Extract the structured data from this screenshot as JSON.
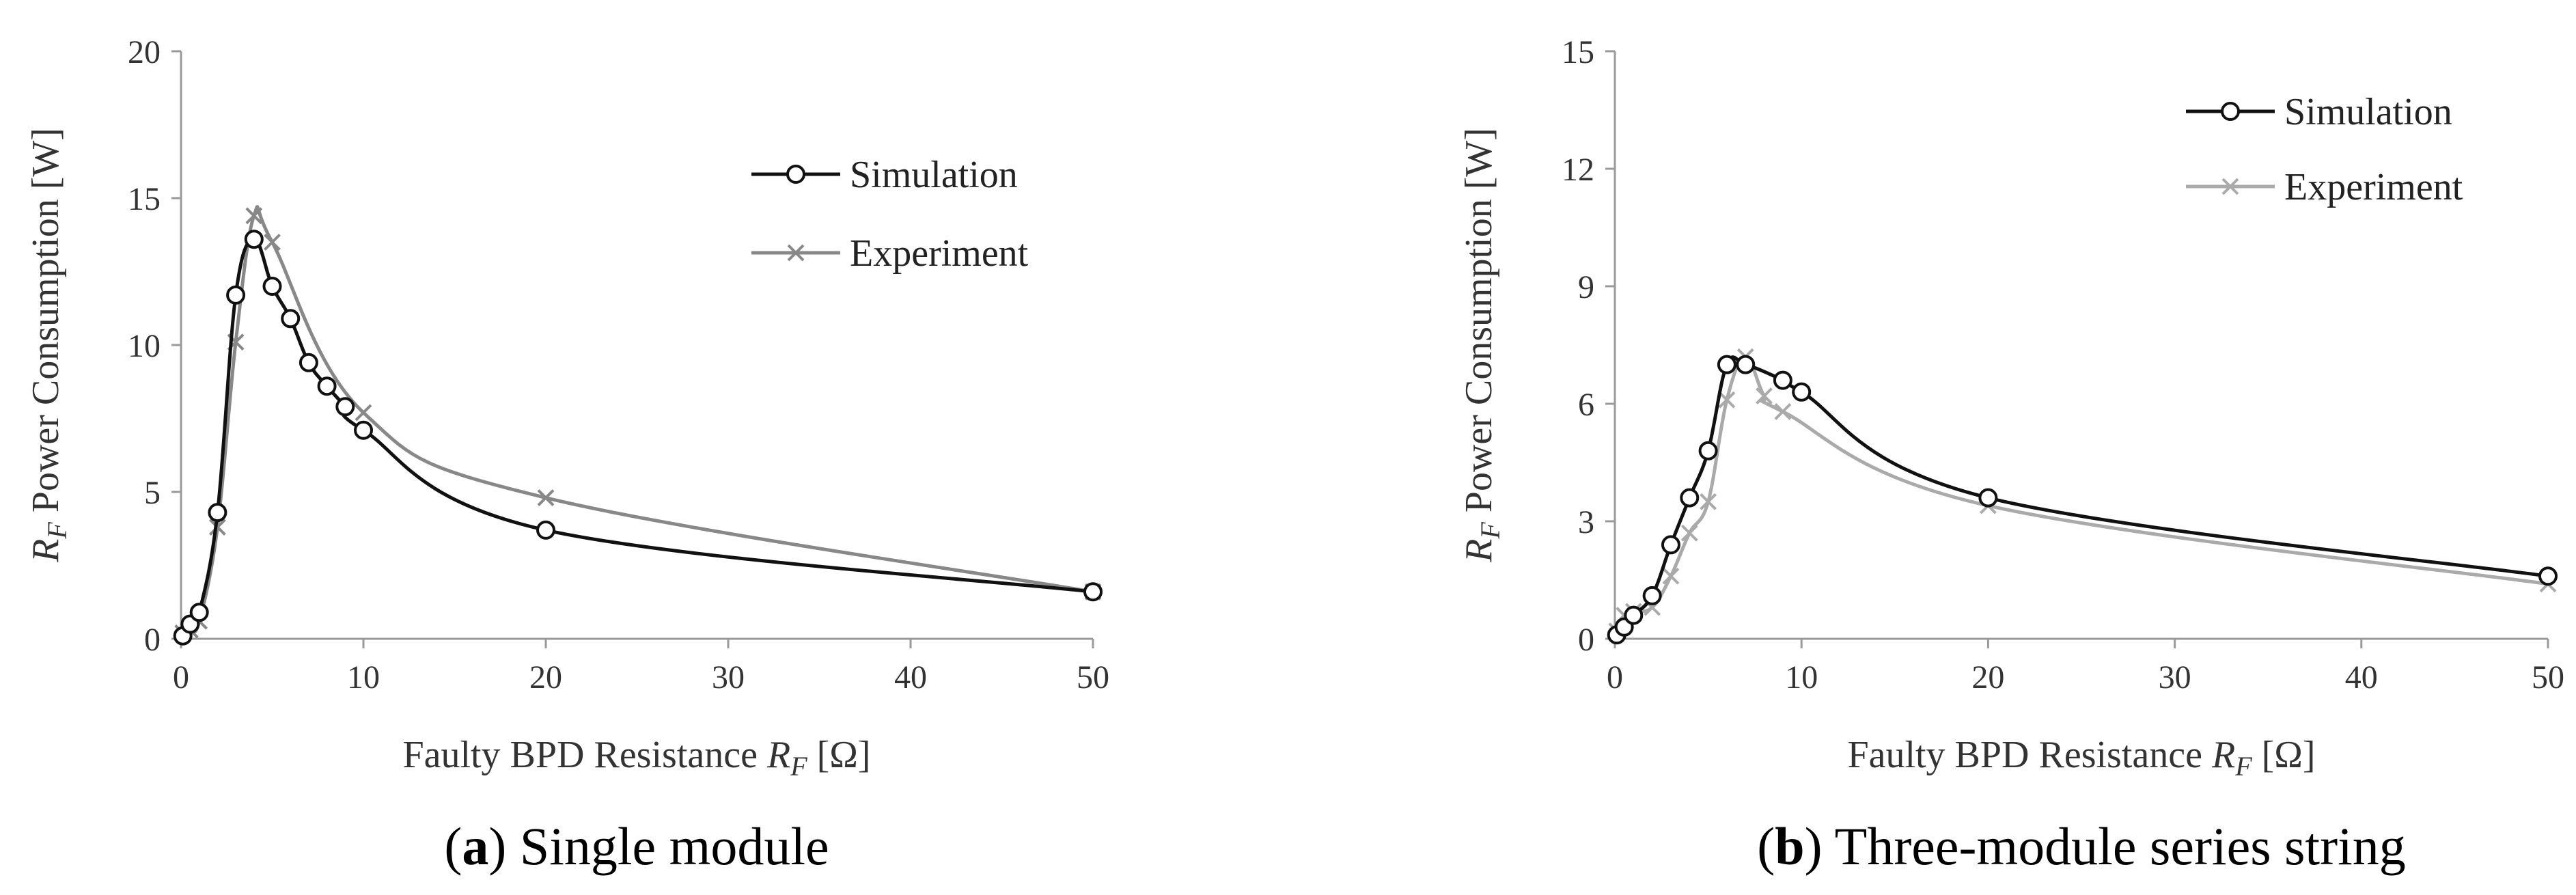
{
  "figure": {
    "captions": [
      {
        "id": "a",
        "label": "a",
        "text": " Single module"
      },
      {
        "id": "b",
        "label": "b",
        "text": " Three-module series string"
      }
    ]
  },
  "colors": {
    "simulation": "#111111",
    "experiment_a": "#888888",
    "experiment_b": "#aaaaaa",
    "axis": "#9a9a9a",
    "text": "#333333"
  },
  "chart_data": [
    {
      "type": "line",
      "title": "",
      "xlabel": "Faulty BPD Resistance R_F [Ω]",
      "xlabel_parts": {
        "main": "Faulty BPD Resistance ",
        "var": "R",
        "sub": "F",
        "unit": " [Ω]"
      },
      "ylabel": "R_F Power Consumption [W]",
      "ylabel_parts": {
        "var": "R",
        "sub": "F",
        "rest": " Power Consumption [W]"
      },
      "xlim": [
        0,
        50
      ],
      "ylim": [
        0,
        20
      ],
      "xticks": [
        0,
        10,
        20,
        30,
        40,
        50
      ],
      "yticks": [
        0,
        5,
        10,
        15,
        20
      ],
      "grid": false,
      "legend_position": "top-right",
      "series": [
        {
          "name": "Simulation",
          "marker": "circle",
          "color": "#111111",
          "x": [
            0.1,
            0.5,
            1,
            2,
            3,
            4,
            5,
            6,
            7,
            8,
            9,
            10,
            20,
            50
          ],
          "y": [
            0.1,
            0.5,
            0.9,
            4.3,
            11.7,
            13.6,
            12.0,
            10.9,
            9.4,
            8.6,
            7.9,
            7.1,
            3.7,
            1.6
          ]
        },
        {
          "name": "Experiment",
          "marker": "x",
          "color": "#888888",
          "x": [
            0.1,
            0.5,
            1,
            2,
            3,
            4,
            5,
            10,
            20,
            50
          ],
          "y": [
            0.2,
            0.3,
            0.6,
            3.8,
            10.1,
            14.4,
            13.5,
            7.7,
            4.8,
            1.6
          ]
        }
      ]
    },
    {
      "type": "line",
      "title": "",
      "xlabel": "Faulty BPD Resistance R_F [Ω]",
      "xlabel_parts": {
        "main": "Faulty BPD Resistance ",
        "var": "R",
        "sub": "F",
        "unit": " [Ω]"
      },
      "ylabel": "R_F Power Consumption [W]",
      "ylabel_parts": {
        "var": "R",
        "sub": "F",
        "rest": " Power Consumption [W]"
      },
      "xlim": [
        0,
        50
      ],
      "ylim": [
        0,
        15
      ],
      "xticks": [
        0,
        10,
        20,
        30,
        40,
        50
      ],
      "yticks": [
        0,
        3,
        6,
        9,
        12,
        15
      ],
      "grid": false,
      "legend_position": "top-right",
      "series": [
        {
          "name": "Simulation",
          "marker": "circle",
          "color": "#111111",
          "x": [
            0.1,
            0.5,
            1,
            2,
            3,
            4,
            5,
            6,
            7,
            9,
            10,
            20,
            50
          ],
          "y": [
            0.1,
            0.3,
            0.6,
            1.1,
            2.4,
            3.6,
            4.8,
            7.0,
            7.0,
            6.6,
            6.3,
            3.6,
            1.6
          ]
        },
        {
          "name": "Experiment",
          "marker": "x",
          "color": "#aaaaaa",
          "x": [
            0.1,
            0.5,
            1,
            2,
            3,
            4,
            5,
            6,
            7,
            8,
            9,
            20,
            50
          ],
          "y": [
            0.2,
            0.6,
            0.7,
            0.8,
            1.6,
            2.7,
            3.5,
            6.1,
            7.2,
            6.2,
            5.8,
            3.4,
            1.4
          ]
        }
      ]
    }
  ]
}
